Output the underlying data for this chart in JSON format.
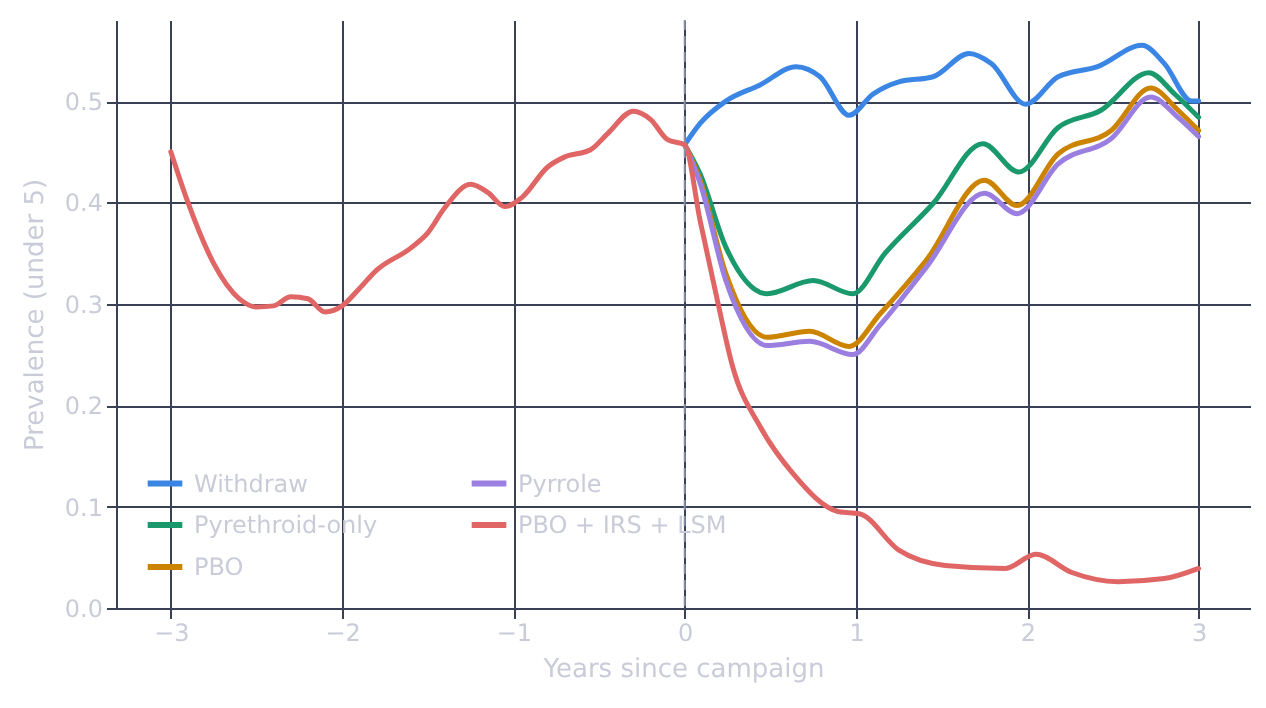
{
  "chart_data": {
    "type": "line",
    "xlabel": "Years since campaign",
    "ylabel": "Prevalence (under 5)",
    "xlim": [
      -3.32,
      3.3
    ],
    "ylim": [
      0,
      0.58
    ],
    "xticks": [
      -3,
      -2,
      -1,
      0,
      1,
      2,
      3
    ],
    "yticks": [
      {
        "value": 0,
        "label": "0.0"
      },
      0.1,
      0.2,
      0.3,
      0.4,
      0.5
    ],
    "grid": true,
    "legend": "bottom left",
    "line_style": "solid",
    "marker": "none",
    "ref_lines": [
      {
        "axis": "x",
        "value": 0,
        "line_style": "dashed",
        "color": "#8a90a8"
      }
    ],
    "series": [
      {
        "name": "Withdraw",
        "color": "#3b86e4",
        "x": [
          0,
          0.09,
          0.24,
          0.44,
          0.65,
          0.79,
          0.96,
          1.1,
          1.25,
          1.45,
          1.66,
          1.79,
          1.99,
          2.18,
          2.41,
          2.67,
          2.8,
          2.96,
          3
        ],
        "values": [
          0.457,
          0.478,
          0.5,
          0.516,
          0.534,
          0.524,
          0.486,
          0.507,
          0.519,
          0.524,
          0.547,
          0.537,
          0.497,
          0.524,
          0.534,
          0.555,
          0.537,
          0.5,
          0.5
        ]
      },
      {
        "name": "Pyrethroid-only",
        "color": "#1a9a6c",
        "x": [
          0,
          0.09,
          0.24,
          0.48,
          0.75,
          0.98,
          1.17,
          1.45,
          1.74,
          1.95,
          2.18,
          2.43,
          2.71,
          2.86,
          3
        ],
        "values": [
          0.457,
          0.428,
          0.356,
          0.31,
          0.323,
          0.31,
          0.35,
          0.399,
          0.458,
          0.43,
          0.474,
          0.491,
          0.528,
          0.507,
          0.484
        ]
      },
      {
        "name": "PBO",
        "color": "#cc8400",
        "x": [
          0,
          0.09,
          0.24,
          0.48,
          0.73,
          0.96,
          1.14,
          1.41,
          1.75,
          1.94,
          2.18,
          2.49,
          2.72,
          2.88,
          3
        ],
        "values": [
          0.457,
          0.422,
          0.33,
          0.267,
          0.273,
          0.258,
          0.29,
          0.343,
          0.422,
          0.397,
          0.448,
          0.471,
          0.513,
          0.491,
          0.471
        ]
      },
      {
        "name": "Pyrrole",
        "color": "#9a7fe0",
        "x": [
          0,
          0.09,
          0.24,
          0.48,
          0.73,
          0.98,
          1.14,
          1.41,
          1.75,
          1.94,
          2.18,
          2.49,
          2.72,
          2.88,
          3
        ],
        "values": [
          0.457,
          0.419,
          0.323,
          0.259,
          0.263,
          0.25,
          0.279,
          0.336,
          0.409,
          0.389,
          0.438,
          0.463,
          0.504,
          0.484,
          0.465
        ]
      },
      {
        "name": "PBO + IRS + LSM",
        "color": "#e06666",
        "x": [
          -3,
          -2.9,
          -2.75,
          -2.6,
          -2.5,
          -2.4,
          -2.3,
          -2.2,
          -2.1,
          -2,
          -1.9,
          -1.8,
          -1.6,
          -1.5,
          -1.4,
          -1.25,
          -1.15,
          -1.05,
          -0.95,
          -0.8,
          -0.7,
          -0.55,
          -0.45,
          -0.3,
          -0.2,
          -0.1,
          0,
          0.09,
          0.19,
          0.28,
          0.44,
          0.63,
          0.9,
          1.02,
          1.25,
          1.52,
          1.87,
          2.05,
          2.26,
          2.53,
          2.8,
          3
        ],
        "values": [
          0.45,
          0.4,
          0.34,
          0.305,
          0.297,
          0.298,
          0.307,
          0.305,
          0.292,
          0.298,
          0.315,
          0.333,
          0.355,
          0.37,
          0.395,
          0.418,
          0.41,
          0.396,
          0.405,
          0.435,
          0.445,
          0.452,
          0.468,
          0.49,
          0.482,
          0.462,
          0.457,
          0.382,
          0.304,
          0.238,
          0.179,
          0.133,
          0.095,
          0.093,
          0.057,
          0.042,
          0.039,
          0.053,
          0.035,
          0.026,
          0.029,
          0.039
        ]
      }
    ]
  }
}
